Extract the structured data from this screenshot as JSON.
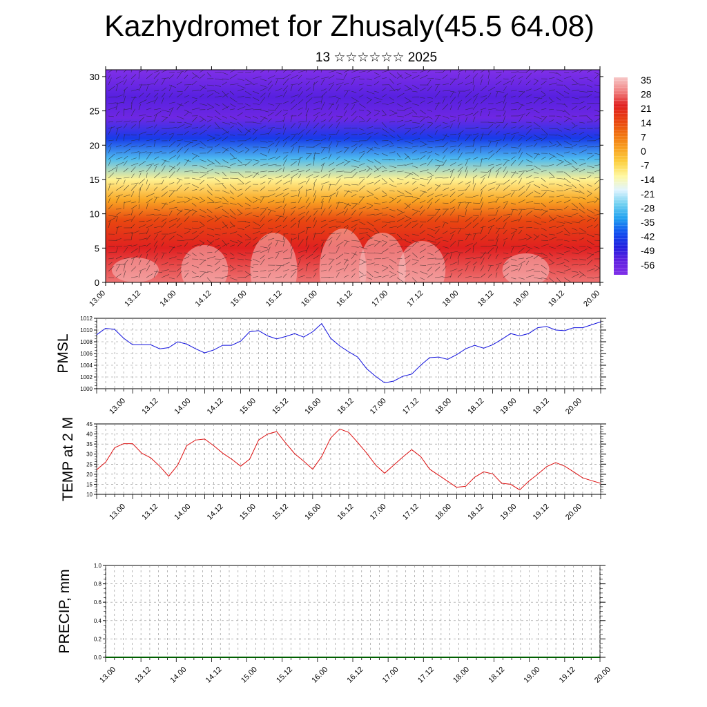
{
  "header": {
    "title": "Kazhydromet for Zhusaly(45.5 64.08)",
    "subtitle": "13 ☆☆☆☆☆☆ 2025"
  },
  "colors": {
    "pmsl_line": "#1010dd",
    "temp_line": "#dd1010",
    "precip_line": "#006000",
    "colorbar": [
      "#f7c8c8",
      "#f08080",
      "#e02020",
      "#e84010",
      "#f07010",
      "#f8a020",
      "#fcd040",
      "#fff8a0",
      "#e0f4ff",
      "#70d0f0",
      "#20a0f0",
      "#1050f0",
      "#2020e0",
      "#6020e0",
      "#8030e8"
    ]
  },
  "chart_data": [
    {
      "type": "heatmap",
      "name": "cross-section",
      "x_tick_labels": [
        "13.00",
        "13.12",
        "14.00",
        "14.12",
        "15.00",
        "15.12",
        "16.00",
        "16.12",
        "17.00",
        "17.12",
        "18.00",
        "18.12",
        "19.00",
        "19.12",
        "20.00"
      ],
      "y_tick_labels": [
        "0",
        "5",
        "10",
        "15",
        "20",
        "25",
        "30"
      ],
      "ylim": [
        0,
        31
      ],
      "colorbar_labels": [
        "35",
        "28",
        "21",
        "14",
        "7",
        "0",
        "-7",
        "-14",
        "-21",
        "-28",
        "-35",
        "-42",
        "-49",
        "-56"
      ],
      "value_range": [
        -60,
        38
      ],
      "levels": [
        {
          "height": 0,
          "value": 30
        },
        {
          "height": 5,
          "value": 24
        },
        {
          "height": 9,
          "value": 16
        },
        {
          "height": 12,
          "value": 2
        },
        {
          "height": 15,
          "value": -10
        },
        {
          "height": 18,
          "value": -28
        },
        {
          "height": 21,
          "value": -42
        },
        {
          "height": 24,
          "value": -56
        },
        {
          "height": 27,
          "value": -52
        },
        {
          "height": 31,
          "value": -60
        }
      ],
      "vectors": "wind arrows overlaid"
    },
    {
      "type": "line",
      "ylabel": "PMSL",
      "x_tick_labels": [
        "13.00",
        "13.12",
        "14.00",
        "14.12",
        "15.00",
        "15.12",
        "16.00",
        "16.12",
        "17.00",
        "17.12",
        "18.00",
        "18.12",
        "19.00",
        "19.12",
        "20.00"
      ],
      "y_tick_labels": [
        "1000",
        "1002",
        "1004",
        "1006",
        "1008",
        "1010",
        "1012"
      ],
      "ylim": [
        1000,
        1012
      ],
      "x_hours": [
        0,
        3,
        6,
        9,
        12,
        15,
        18,
        21,
        24,
        27,
        30,
        33,
        36,
        39,
        42,
        45,
        48,
        51,
        54,
        57,
        60,
        63,
        66,
        69,
        72,
        75,
        78,
        81,
        84,
        87,
        90,
        93,
        96,
        99,
        102,
        105,
        108,
        111,
        114,
        117,
        120,
        123,
        126,
        129,
        132,
        135,
        138,
        141,
        144,
        147,
        150,
        153,
        156,
        159,
        162,
        165,
        168
      ],
      "values": [
        1009.2,
        1010.3,
        1010.1,
        1008.6,
        1007.5,
        1007.5,
        1007.5,
        1006.8,
        1007.0,
        1008.0,
        1007.6,
        1006.8,
        1006.1,
        1006.6,
        1007.4,
        1007.4,
        1008.1,
        1009.7,
        1009.9,
        1009.0,
        1008.5,
        1008.9,
        1009.4,
        1008.8,
        1009.7,
        1011.1,
        1008.6,
        1007.3,
        1006.3,
        1005.4,
        1003.4,
        1002.1,
        1001.0,
        1001.3,
        1002.1,
        1002.5,
        1004.0,
        1005.3,
        1005.4,
        1005.0,
        1005.8,
        1006.8,
        1007.4,
        1006.9,
        1007.5,
        1008.4,
        1009.4,
        1009.0,
        1009.4,
        1010.4,
        1010.6,
        1010.0,
        1009.9,
        1010.4,
        1010.4,
        1010.9,
        1011.4
      ]
    },
    {
      "type": "line",
      "ylabel": "TEMP at 2 M",
      "x_tick_labels": [
        "13.00",
        "13.12",
        "14.00",
        "14.12",
        "15.00",
        "15.12",
        "16.00",
        "16.12",
        "17.00",
        "17.12",
        "18.00",
        "18.12",
        "19.00",
        "19.12",
        "20.00"
      ],
      "y_tick_labels": [
        "10",
        "15",
        "20",
        "25",
        "30",
        "35",
        "40",
        "45"
      ],
      "ylim": [
        10,
        45
      ],
      "x_hours": [
        0,
        3,
        6,
        9,
        12,
        15,
        18,
        21,
        24,
        27,
        30,
        33,
        36,
        39,
        42,
        45,
        48,
        51,
        54,
        57,
        60,
        63,
        66,
        69,
        72,
        75,
        78,
        81,
        84,
        87,
        90,
        93,
        96,
        99,
        102,
        105,
        108,
        111,
        114,
        117,
        120,
        123,
        126,
        129,
        132,
        135,
        138,
        141,
        144,
        147,
        150,
        153,
        156,
        159,
        162,
        165,
        168
      ],
      "values": [
        22.2,
        26.0,
        33.2,
        35.2,
        35.2,
        30.5,
        28.2,
        24.0,
        19.0,
        24.5,
        34.2,
        37.0,
        37.5,
        34.2,
        30.5,
        27.5,
        24.0,
        27.5,
        37.0,
        40.0,
        41.2,
        35.5,
        30.2,
        26.5,
        22.5,
        28.8,
        38.0,
        42.5,
        40.8,
        35.8,
        30.5,
        24.5,
        20.5,
        24.5,
        28.5,
        32.2,
        28.8,
        22.5,
        19.5,
        16.5,
        13.5,
        14.0,
        18.5,
        21.2,
        20.2,
        15.5,
        15.0,
        12.2,
        16.5,
        20.0,
        23.8,
        25.8,
        24.0,
        21.2,
        18.2,
        16.8,
        15.5
      ]
    },
    {
      "type": "line",
      "ylabel": "PRECIP, mm",
      "x_tick_labels": [
        "13.00",
        "13.12",
        "14.00",
        "14.12",
        "15.00",
        "15.12",
        "16.00",
        "16.12",
        "17.00",
        "17.12",
        "18.00",
        "18.12",
        "19.00",
        "19.12",
        "20.00"
      ],
      "y_tick_labels": [
        "0.0",
        "0.2",
        "0.4",
        "0.6",
        "0.8",
        "1.0"
      ],
      "ylim": [
        0,
        1
      ],
      "x_hours": [
        0,
        168
      ],
      "values": [
        0,
        0
      ]
    }
  ]
}
